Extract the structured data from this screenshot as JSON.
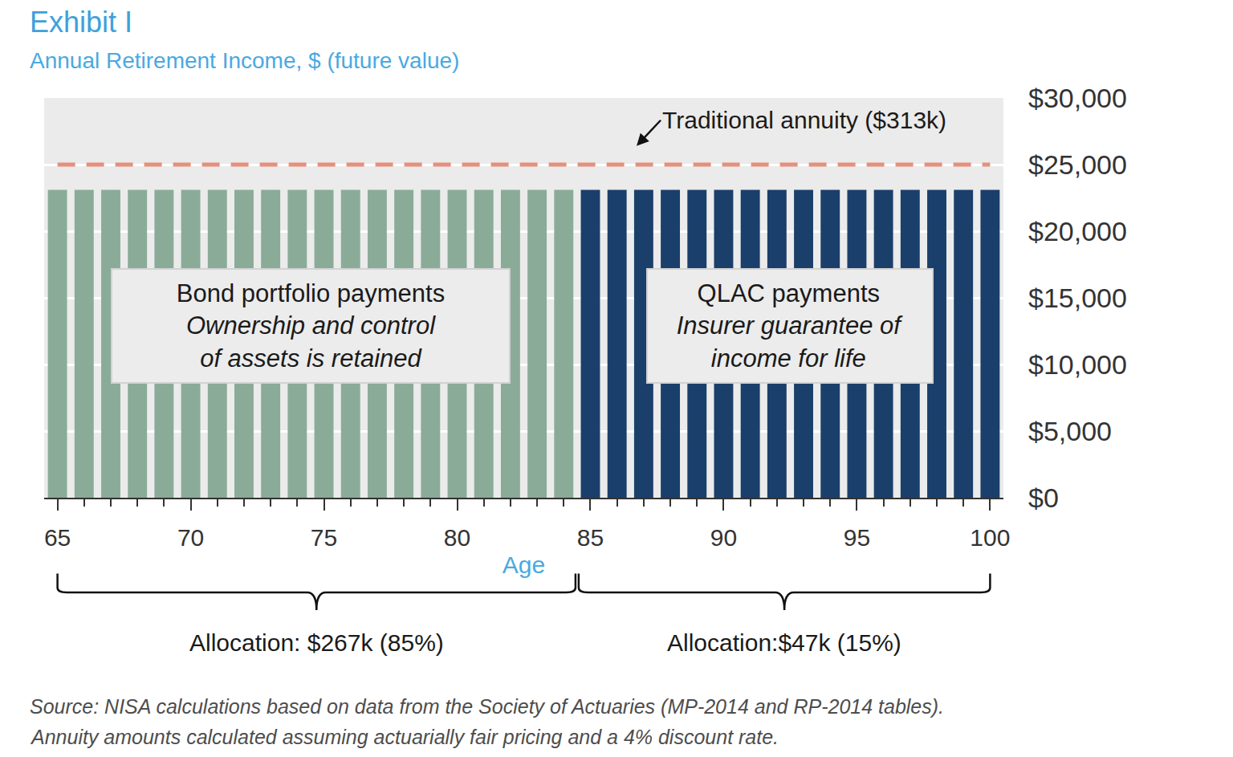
{
  "chart_data": {
    "type": "bar",
    "title": "Exhibit I",
    "subtitle": "Annual Retirement Income, $ (future value)",
    "xlabel": "Age",
    "x": [
      65,
      66,
      67,
      68,
      69,
      70,
      71,
      72,
      73,
      74,
      75,
      76,
      77,
      78,
      79,
      80,
      81,
      82,
      83,
      84,
      85,
      86,
      87,
      88,
      89,
      90,
      91,
      92,
      93,
      94,
      95,
      96,
      97,
      98,
      99,
      100
    ],
    "series": [
      {
        "name": "Bond portfolio payments",
        "description": [
          "Ownership and control",
          "of assets is retained"
        ],
        "allocation": "Allocation: $267k (85%)",
        "color": "#8aab98",
        "values": [
          23100,
          23100,
          23100,
          23100,
          23100,
          23100,
          23100,
          23100,
          23100,
          23100,
          23100,
          23100,
          23100,
          23100,
          23100,
          23100,
          23100,
          23100,
          23100,
          23100,
          null,
          null,
          null,
          null,
          null,
          null,
          null,
          null,
          null,
          null,
          null,
          null,
          null,
          null,
          null,
          null
        ]
      },
      {
        "name": "QLAC payments",
        "description": [
          "Insurer guarantee of",
          "income for life"
        ],
        "allocation": "Allocation:$47k (15%)",
        "color": "#1b3f6b",
        "values": [
          null,
          null,
          null,
          null,
          null,
          null,
          null,
          null,
          null,
          null,
          null,
          null,
          null,
          null,
          null,
          null,
          null,
          null,
          null,
          null,
          23100,
          23100,
          23100,
          23100,
          23100,
          23100,
          23100,
          23100,
          23100,
          23100,
          23100,
          23100,
          23100,
          23100,
          23100,
          23100
        ]
      }
    ],
    "reference_line": {
      "value": 25000,
      "label": "Traditional annuity ($313k)",
      "color": "#e5907c",
      "line_style": "dash"
    },
    "xlim": [
      64.5,
      100.5
    ],
    "xticks": [
      65,
      70,
      75,
      80,
      85,
      90,
      95,
      100
    ],
    "ylim": [
      0,
      30000
    ],
    "yticks": [
      {
        "value": 0,
        "label": "$0"
      },
      {
        "value": 5000,
        "label": "$5,000"
      },
      {
        "value": 10000,
        "label": "$10,000"
      },
      {
        "value": 15000,
        "label": "$15,000"
      },
      {
        "value": 20000,
        "label": "$20,000"
      },
      {
        "value": 25000,
        "label": "$25,000"
      },
      {
        "value": 30000,
        "label": "$30,000"
      }
    ],
    "grid": true,
    "source": [
      "Source: NISA calculations based on data from the Society of Actuaries (MP-2014 and RP-2014 tables).",
      "Annuity amounts calculated assuming actuarially fair pricing and a 4% discount rate."
    ]
  }
}
